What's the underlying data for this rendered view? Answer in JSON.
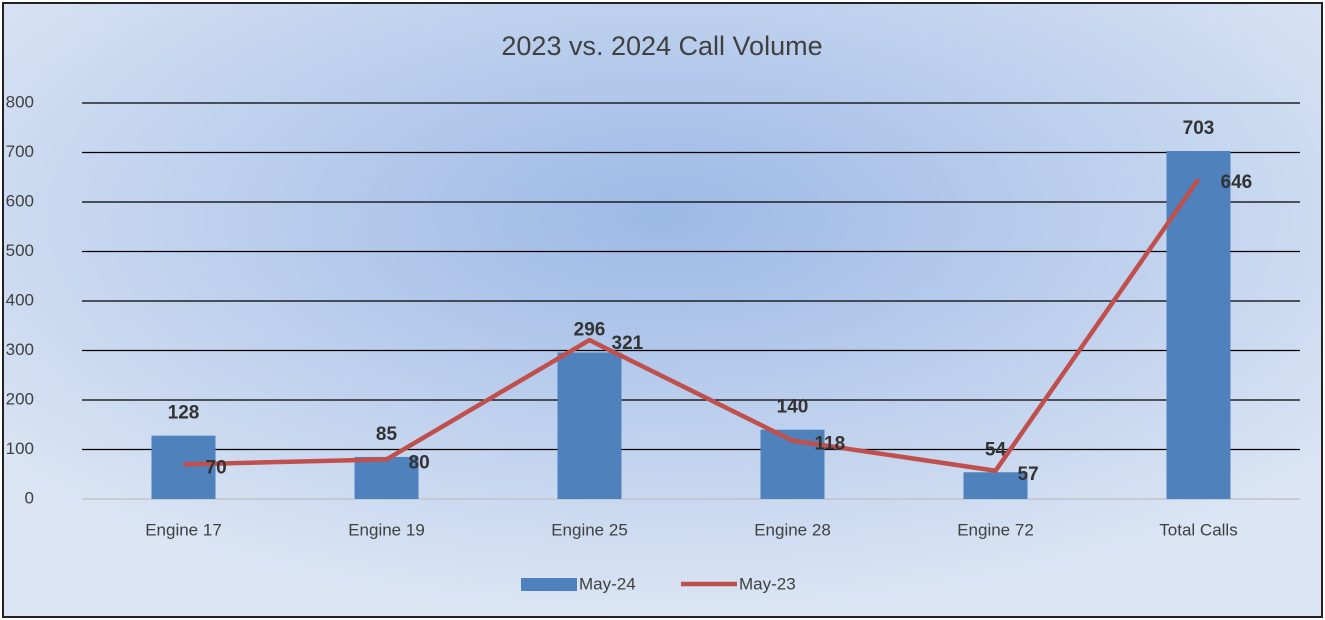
{
  "chart_data": {
    "type": "combo",
    "title": "2023 vs. 2024 Call Volume",
    "categories": [
      "Engine 17",
      "Engine 19",
      "Engine 25",
      "Engine 28",
      "Engine 72",
      "Total Calls"
    ],
    "series": [
      {
        "name": "May-24",
        "type": "bar",
        "color": "#4f81bd",
        "values": [
          128,
          85,
          296,
          140,
          54,
          703
        ]
      },
      {
        "name": "May-23",
        "type": "line",
        "color": "#c0504d",
        "values": [
          70,
          80,
          321,
          118,
          57,
          646
        ]
      }
    ],
    "ylim": [
      0,
      800
    ],
    "yticks": [
      0,
      100,
      200,
      300,
      400,
      500,
      600,
      700,
      800
    ],
    "grid": true,
    "legend": "bottom"
  }
}
